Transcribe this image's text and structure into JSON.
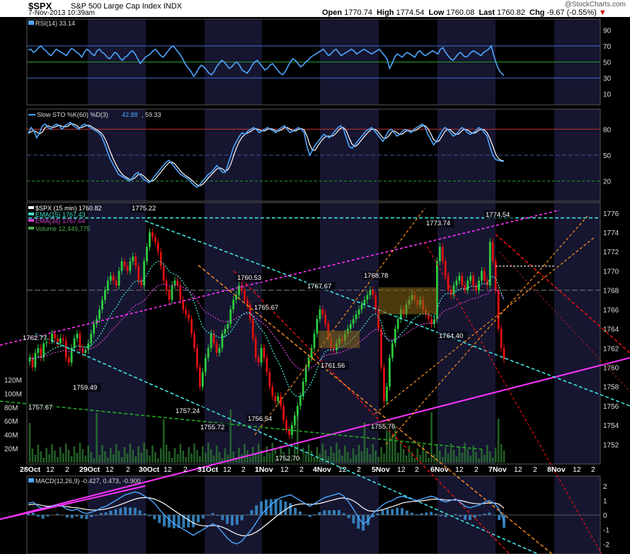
{
  "header": {
    "symbol": "$SPX",
    "name": "S&P 500 Large Cap Index",
    "exchange": "INDX",
    "date": "7-Nov-2013 10:39am",
    "brand": "@StockCharts.com",
    "open_label": "Open",
    "open": "1770.74",
    "high_label": "High",
    "high": "1774.54",
    "low_label": "Low",
    "low": "1760.08",
    "last_label": "Last",
    "last": "1760.82",
    "chg_label": "Chg",
    "chg": "-9.67 (-0.55%)",
    "chg_arrow": "▼"
  },
  "colors": {
    "background": "#000000",
    "band": "#161630",
    "up_candle": "#2ecc40",
    "down_candle": "#e01010",
    "rsi_line": "#4da6ff",
    "sto_k": "#4da6ff",
    "sto_d": "#ffffff",
    "ema15": "#40e0d0",
    "ema34": "#d040d0",
    "volume": "#2e7d32",
    "resistance": "#40e0e0",
    "channel_magenta": "#ff33ff",
    "down_channel_red": "#ff2020",
    "orange": "#ff9020"
  },
  "chart_data": [
    {
      "panel": "RSI",
      "type": "line",
      "legend": "RSI(14) 33.14",
      "ylim": [
        0,
        100
      ],
      "ticks": [
        90,
        70,
        50,
        30,
        10
      ],
      "levels": [
        70,
        50,
        30
      ],
      "values": [
        65,
        66,
        62,
        64,
        68,
        70,
        66,
        64,
        60,
        58,
        62,
        66,
        64,
        62,
        60,
        58,
        63,
        67,
        65,
        62,
        60,
        56,
        62,
        66,
        64,
        60,
        58,
        64,
        66,
        62,
        60,
        56,
        54,
        58,
        62,
        60,
        55,
        52,
        56,
        58,
        62,
        64,
        60,
        54,
        48,
        52,
        56,
        58,
        60,
        64,
        66,
        62,
        58,
        56,
        60,
        64,
        68,
        70,
        66,
        62,
        58,
        52,
        46,
        42,
        38,
        32,
        36,
        42,
        46,
        44,
        40,
        36,
        34,
        38,
        44,
        48,
        52,
        50,
        46,
        42,
        44,
        48,
        50,
        46,
        40,
        38,
        36,
        40,
        46,
        50,
        52,
        48,
        44,
        40,
        42,
        46,
        48,
        44,
        40,
        36,
        34,
        38,
        44,
        50,
        54,
        52,
        48,
        44,
        46,
        50,
        52,
        56,
        58,
        60,
        62,
        64,
        66,
        62,
        58,
        60,
        64,
        66,
        62,
        58,
        60,
        62,
        64,
        66,
        64,
        60,
        62,
        64,
        66,
        64,
        62,
        60,
        62,
        64,
        66,
        62,
        58,
        54,
        42,
        48,
        56,
        60,
        58,
        56,
        60,
        62,
        60,
        58,
        56,
        62,
        64,
        60,
        58,
        60,
        62,
        64,
        62,
        60,
        66,
        68,
        62,
        58,
        54,
        52,
        56,
        60,
        62,
        58,
        56,
        58,
        62,
        64,
        62,
        60,
        58,
        62,
        64,
        66,
        70,
        58,
        48,
        40,
        36,
        33
      ]
    },
    {
      "panel": "Slow STO",
      "type": "line",
      "legend_prefix": "Slow STO %K(60) %D(3)",
      "k_value": "42.88",
      "d_value": "59.33",
      "ylim": [
        0,
        100
      ],
      "ticks": [
        80,
        50,
        20
      ],
      "levels": [
        80,
        50,
        20
      ],
      "values": [
        75,
        82,
        78,
        70,
        76,
        84,
        86,
        82,
        80,
        84,
        86,
        84,
        80,
        84,
        86,
        88,
        84,
        82,
        80,
        84,
        86,
        84,
        82,
        80,
        78,
        76,
        72,
        64,
        55,
        46,
        40,
        34,
        28,
        26,
        24,
        22,
        20,
        24,
        28,
        30,
        26,
        22,
        20,
        18,
        22,
        26,
        30,
        34,
        38,
        42,
        44,
        40,
        36,
        32,
        28,
        26,
        24,
        22,
        18,
        15,
        13,
        16,
        20,
        24,
        28,
        30,
        34,
        38,
        34,
        30,
        30,
        40,
        50,
        60,
        66,
        72,
        76,
        74,
        78,
        80,
        82,
        80,
        76,
        78,
        80,
        82,
        80,
        78,
        76,
        80,
        82,
        84,
        80,
        76,
        78,
        80,
        82,
        80,
        76,
        60,
        50,
        56,
        62,
        66,
        70,
        74,
        72,
        70,
        74,
        78,
        82,
        84,
        80,
        70,
        60,
        58,
        62,
        66,
        70,
        74,
        78,
        80,
        82,
        78,
        74,
        70,
        66,
        72,
        78,
        80,
        76,
        72,
        74,
        78,
        80,
        78,
        76,
        80,
        82,
        84,
        86,
        82,
        74,
        68,
        62,
        66,
        72,
        78,
        82,
        80,
        76,
        72,
        74,
        78,
        82,
        80,
        76,
        74,
        76,
        78,
        82,
        80,
        76,
        72,
        60,
        50,
        45,
        44,
        43,
        42.88
      ]
    },
    {
      "panel": "SPX",
      "type": "candlestick",
      "legend": "$SPX (15 min) 1760.82",
      "ema15_legend": "EMA(15) 1767.43",
      "ema34_legend": "EMA(34) 1767.64",
      "volume_legend": "Volume 12,449,775",
      "ylim": [
        1751,
        1776.5
      ],
      "ticks": [
        1776,
        1774,
        1772,
        1770,
        1768,
        1766,
        1764,
        1762,
        1760,
        1758,
        1756,
        1754,
        1752
      ],
      "volume_ticks": [
        "120M",
        "100M",
        "80M",
        "60M",
        "40M",
        "20M"
      ],
      "x_labels": [
        "28Oct",
        "12",
        "2",
        "29Oct",
        "12",
        "2",
        "30Oct",
        "12",
        "2",
        "31Oct",
        "12",
        "2",
        "1Nov",
        "12",
        "2",
        "4Nov",
        "12",
        "2",
        "5Nov",
        "12",
        "2",
        "6Nov",
        "12",
        "2",
        "7Nov",
        "12",
        "2",
        "8Nov",
        "12",
        "2"
      ],
      "annotations": [
        {
          "text": "1775.22",
          "value": 1775.22
        },
        {
          "text": "1762.77",
          "value": 1762.77
        },
        {
          "text": "1757.67",
          "value": 1757.67
        },
        {
          "text": "1759.49",
          "value": 1759.49
        },
        {
          "text": "1757.24",
          "value": 1757.24
        },
        {
          "text": "1755.72",
          "value": 1755.72
        },
        {
          "text": "1760.53",
          "value": 1760.53
        },
        {
          "text": "1765.67",
          "value": 1765.67
        },
        {
          "text": "1756.54",
          "value": 1756.54
        },
        {
          "text": "1752.70",
          "value": 1752.7
        },
        {
          "text": "1767.67",
          "value": 1767.67
        },
        {
          "text": "1761.56",
          "value": 1761.56
        },
        {
          "text": "1768.78",
          "value": 1768.78
        },
        {
          "text": "1755.76",
          "value": 1755.76
        },
        {
          "text": "1773.74",
          "value": 1773.74
        },
        {
          "text": "1764.40",
          "value": 1764.4
        },
        {
          "text": "1774.54",
          "value": 1774.54
        }
      ],
      "close": [
        1761,
        1760,
        1761.5,
        1762,
        1761,
        1762.5,
        1763,
        1762.8,
        1763.5,
        1763,
        1762.5,
        1763,
        1762.8,
        1761,
        1760.5,
        1762,
        1763,
        1763.5,
        1762,
        1761.5,
        1761.8,
        1762.5,
        1763.5,
        1764.5,
        1765,
        1766,
        1767,
        1768,
        1769,
        1769.5,
        1769,
        1768.5,
        1770,
        1771,
        1770.5,
        1770,
        1771,
        1771.5,
        1770.5,
        1769,
        1768.5,
        1771,
        1772.5,
        1774,
        1773.5,
        1773,
        1772,
        1770.5,
        1769,
        1768,
        1767,
        1768.5,
        1769,
        1768.5,
        1767,
        1766,
        1765.5,
        1765,
        1763.5,
        1762,
        1760,
        1758,
        1759.5,
        1761,
        1762,
        1763.5,
        1762.5,
        1761.5,
        1762,
        1763.5,
        1764,
        1764.5,
        1766,
        1767,
        1767.5,
        1768.5,
        1768,
        1767,
        1766.5,
        1765,
        1763,
        1761,
        1760.5,
        1762,
        1761,
        1759.5,
        1758,
        1757,
        1756.5,
        1757,
        1756,
        1754.5,
        1753.5,
        1753,
        1754,
        1755,
        1756,
        1757,
        1758.5,
        1760,
        1761,
        1762,
        1763.5,
        1765,
        1766,
        1765.5,
        1764.5,
        1763,
        1762,
        1761.8,
        1762.5,
        1763,
        1762.8,
        1763.5,
        1764,
        1764.5,
        1765,
        1765.5,
        1766,
        1766.5,
        1767,
        1767.5,
        1768,
        1767.5,
        1766,
        1764,
        1760,
        1756.5,
        1758,
        1761,
        1762.5,
        1764,
        1765,
        1766,
        1765.5,
        1766.5,
        1767,
        1767.5,
        1767,
        1766.5,
        1767,
        1766,
        1765.5,
        1765,
        1764.5,
        1765,
        1771,
        1772.5,
        1771,
        1769.5,
        1768,
        1767.5,
        1768.5,
        1769,
        1769.5,
        1768.5,
        1768,
        1769,
        1769.5,
        1768.5,
        1768,
        1769,
        1770,
        1769,
        1768.5,
        1773,
        1771,
        1768,
        1764,
        1762,
        1760.82
      ]
    },
    {
      "panel": "MACD",
      "type": "line",
      "legend": "MACD(12,26,9) -0.427, 0.473, -0.900",
      "ylim": [
        -2.6,
        2.3
      ],
      "ticks": [
        2,
        1,
        0,
        -1,
        -2
      ],
      "macd": [
        0.8,
        0.9,
        0.6,
        0.4,
        0.5,
        0.6,
        0.7,
        0.6,
        0.4,
        0.3,
        0.4,
        0.2,
        0.1,
        0.2,
        0.3,
        0.5,
        0.6,
        0.8,
        1.0,
        1.2,
        1.4,
        1.5,
        1.6,
        1.5,
        1.3,
        1.1,
        0.8,
        0.4,
        0.0,
        -0.3,
        -0.6,
        -0.8,
        -1.0,
        -1.2,
        -1.4,
        -1.2,
        -1.0,
        -0.8,
        -0.6,
        -0.8,
        -1.2,
        -1.6,
        -1.9,
        -2.0,
        -1.8,
        -1.4,
        -1.0,
        -0.5,
        0.0,
        0.4,
        0.7,
        1.0,
        1.2,
        1.3,
        1.4,
        1.2,
        1.0,
        0.8,
        0.6,
        0.8,
        1.0,
        1.2,
        1.3,
        1.4,
        1.5,
        1.3,
        0.9,
        0.4,
        -0.2,
        -0.6,
        -0.4,
        0.1,
        0.4,
        0.7,
        0.9,
        1.0,
        1.2,
        1.3,
        1.2,
        1.1,
        1.0,
        1.1,
        1.2,
        1.3,
        1.2,
        1.0,
        0.9,
        1.0,
        1.1,
        0.9,
        0.6,
        0.5,
        0.6,
        0.7,
        0.9,
        1.0,
        0.8,
        0.4,
        -0.427
      ],
      "signal": [
        0.7,
        0.75,
        0.72,
        0.65,
        0.6,
        0.6,
        0.62,
        0.62,
        0.58,
        0.52,
        0.5,
        0.44,
        0.38,
        0.35,
        0.34,
        0.37,
        0.42,
        0.5,
        0.6,
        0.72,
        0.85,
        0.98,
        1.1,
        1.18,
        1.2,
        1.18,
        1.1,
        0.96,
        0.78,
        0.56,
        0.32,
        0.1,
        -0.12,
        -0.34,
        -0.55,
        -0.68,
        -0.75,
        -0.76,
        -0.73,
        -0.74,
        -0.84,
        -0.99,
        -1.17,
        -1.33,
        -1.43,
        -1.43,
        -1.34,
        -1.17,
        -0.94,
        -0.67,
        -0.4,
        -0.12,
        0.14,
        0.37,
        0.58,
        0.7,
        0.76,
        0.77,
        0.74,
        0.75,
        0.8,
        0.88,
        0.97,
        1.06,
        1.15,
        1.18,
        1.12,
        0.98,
        0.75,
        0.48,
        0.3,
        0.26,
        0.29,
        0.37,
        0.48,
        0.58,
        0.7,
        0.82,
        0.89,
        0.94,
        0.95,
        0.98,
        1.02,
        1.08,
        1.1,
        1.08,
        1.04,
        1.03,
        1.04,
        1.01,
        0.93,
        0.84,
        0.79,
        0.77,
        0.8,
        0.84,
        0.83,
        0.75,
        0.473
      ],
      "histogram": [
        0.1,
        0.15,
        -0.12,
        -0.25,
        -0.1,
        0.0,
        0.08,
        -0.02,
        -0.18,
        -0.22,
        -0.1,
        -0.24,
        -0.28,
        -0.15,
        -0.04,
        0.13,
        0.18,
        0.3,
        0.4,
        0.48,
        0.55,
        0.52,
        0.5,
        0.32,
        0.1,
        -0.08,
        -0.3,
        -0.56,
        -0.78,
        -0.86,
        -0.92,
        -0.9,
        -0.88,
        -0.86,
        -0.85,
        -0.52,
        -0.25,
        -0.04,
        0.13,
        -0.06,
        -0.36,
        -0.61,
        -0.73,
        -0.67,
        -0.37,
        0.03,
        0.34,
        0.67,
        0.94,
        1.07,
        1.1,
        1.12,
        1.06,
        0.93,
        0.82,
        0.5,
        0.24,
        0.03,
        -0.14,
        0.05,
        0.2,
        0.32,
        0.33,
        0.34,
        0.35,
        0.12,
        -0.22,
        -0.58,
        -0.95,
        -1.08,
        -0.7,
        -0.16,
        0.11,
        0.33,
        0.42,
        0.42,
        0.5,
        0.48,
        0.31,
        0.16,
        0.05,
        0.12,
        0.18,
        0.22,
        0.1,
        -0.08,
        -0.14,
        -0.03,
        0.06,
        -0.11,
        -0.33,
        -0.34,
        -0.19,
        -0.07,
        0.1,
        0.16,
        -0.03,
        -0.35,
        -0.9
      ]
    }
  ]
}
